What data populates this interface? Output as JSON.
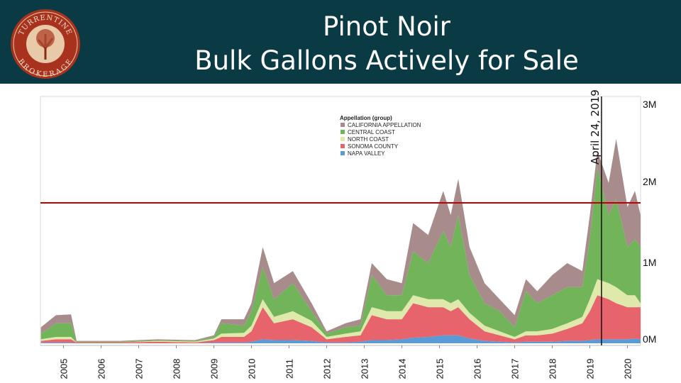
{
  "header": {
    "title_line1": "Pinot Noir",
    "title_line2": "Bulk Gallons Actively for Sale",
    "logo_text_top": "TURRENTINE",
    "logo_text_bottom": "BROKERAGE"
  },
  "chart_data": {
    "type": "area",
    "stacked": true,
    "xlabel": "",
    "ylabel": "",
    "xlim": [
      2004.4,
      2020.35
    ],
    "ylim": [
      0,
      3
    ],
    "y_unit": "M gallons",
    "x_ticks": [
      "2005",
      "2006",
      "2007",
      "2008",
      "2009",
      "2010",
      "2011",
      "2012",
      "2013",
      "2014",
      "2015",
      "2016",
      "2017",
      "2018",
      "2019",
      "2020"
    ],
    "y_ticks": [
      "0M",
      "1M",
      "2M",
      "3M"
    ],
    "legend_title": "Appellation (group)",
    "legend_position": "top-center",
    "reference_line_value": 1.75,
    "reference_line_color": "#c00000",
    "annotation": {
      "label": "April 24, 2019",
      "x": 2019.31
    },
    "x": [
      2004.4,
      2004.8,
      2005.2,
      2005.35,
      2006.5,
      2007.5,
      2008.5,
      2009.0,
      2009.2,
      2009.8,
      2010.0,
      2010.3,
      2010.6,
      2011.1,
      2011.6,
      2012.0,
      2012.5,
      2012.9,
      2013.2,
      2013.6,
      2014.0,
      2014.3,
      2014.7,
      2015.1,
      2015.3,
      2015.5,
      2015.8,
      2016.2,
      2016.6,
      2017.0,
      2017.3,
      2017.6,
      2018.0,
      2018.4,
      2018.8,
      2019.0,
      2019.2,
      2019.5,
      2019.7,
      2020.0,
      2020.2,
      2020.35
    ],
    "series": [
      {
        "name": "NAPA VALLEY",
        "color": "#5b9bd5",
        "values": [
          0.01,
          0.01,
          0.01,
          0,
          0,
          0,
          0,
          0.01,
          0.01,
          0.01,
          0.02,
          0.05,
          0.04,
          0.04,
          0.03,
          0.01,
          0.01,
          0.02,
          0.04,
          0.04,
          0.05,
          0.07,
          0.08,
          0.1,
          0.1,
          0.1,
          0.06,
          0.03,
          0.02,
          0.01,
          0.02,
          0.02,
          0.02,
          0.03,
          0.03,
          0.04,
          0.05,
          0.05,
          0.05,
          0.05,
          0.06,
          0.05
        ]
      },
      {
        "name": "SONOMA COUNTY",
        "color": "#e8646c",
        "values": [
          0.02,
          0.04,
          0.04,
          0.01,
          0.01,
          0.02,
          0.01,
          0.03,
          0.07,
          0.07,
          0.13,
          0.4,
          0.21,
          0.26,
          0.17,
          0.04,
          0.07,
          0.08,
          0.31,
          0.26,
          0.25,
          0.43,
          0.37,
          0.35,
          0.3,
          0.35,
          0.24,
          0.12,
          0.08,
          0.04,
          0.08,
          0.08,
          0.1,
          0.15,
          0.22,
          0.36,
          0.55,
          0.5,
          0.45,
          0.4,
          0.39,
          0.4
        ]
      },
      {
        "name": "NORTH COAST",
        "color": "#dfe9ab",
        "values": [
          0.02,
          0.03,
          0.03,
          0,
          0,
          0.01,
          0.01,
          0.02,
          0.04,
          0.05,
          0.07,
          0.1,
          0.08,
          0.1,
          0.08,
          0.03,
          0.04,
          0.05,
          0.1,
          0.1,
          0.1,
          0.1,
          0.1,
          0.1,
          0.1,
          0.1,
          0.08,
          0.07,
          0.05,
          0.03,
          0.05,
          0.05,
          0.06,
          0.07,
          0.08,
          0.15,
          0.2,
          0.2,
          0.2,
          0.15,
          0.15,
          0.05
        ]
      },
      {
        "name": "CENTRAL COAST",
        "color": "#72b45a",
        "values": [
          0.07,
          0.17,
          0.17,
          0.01,
          0.01,
          0.01,
          0.01,
          0.02,
          0.13,
          0.09,
          0.18,
          0.4,
          0.22,
          0.35,
          0.12,
          0.04,
          0.08,
          0.07,
          0.4,
          0.2,
          0.2,
          0.55,
          0.45,
          0.85,
          0.7,
          1.05,
          0.47,
          0.28,
          0.25,
          0.12,
          0.5,
          0.35,
          0.42,
          0.45,
          0.37,
          0.75,
          1.4,
          0.85,
          1.1,
          0.6,
          0.7,
          0.7
        ]
      },
      {
        "name": "CALIFORNIA APPELLATION",
        "color": "#a88b8b",
        "values": [
          0.08,
          0.1,
          0.11,
          0.01,
          0.01,
          0.01,
          0.01,
          0.02,
          0.05,
          0.08,
          0.1,
          0.25,
          0.2,
          0.15,
          0.1,
          0.03,
          0.05,
          0.08,
          0.15,
          0.2,
          0.15,
          0.35,
          0.35,
          0.5,
          0.4,
          0.45,
          0.35,
          0.25,
          0.15,
          0.15,
          0.15,
          0.15,
          0.25,
          0.3,
          0.2,
          0.3,
          0.2,
          0.4,
          0.75,
          0.5,
          0.6,
          0.4
        ]
      }
    ]
  }
}
